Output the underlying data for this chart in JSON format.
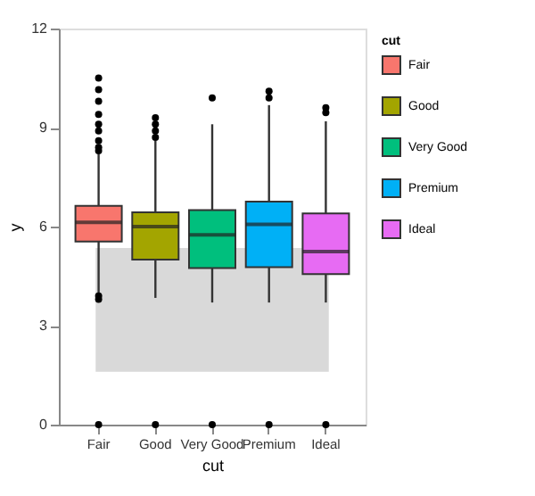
{
  "chart_data": {
    "type": "box",
    "xlabel": "cut",
    "ylabel": "y",
    "legend_title": "cut",
    "legend": "right",
    "grid": false,
    "categories": [
      "Fair",
      "Good",
      "Very Good",
      "Premium",
      "Ideal"
    ],
    "ylim": [
      0,
      12
    ],
    "yticks": [
      0,
      3,
      6,
      9,
      12
    ],
    "series": [
      {
        "name": "Fair",
        "color": "#f8766d",
        "boxes": [
          {
            "low": 4.0,
            "q1": 5.55,
            "median": 6.13,
            "q3": 6.63,
            "high": 8.2,
            "outliers": [
              10.5,
              10.15,
              9.8,
              9.4,
              9.1,
              8.9,
              8.6,
              8.4,
              8.3,
              3.9,
              3.8,
              0
            ]
          },
          null,
          null,
          null,
          null
        ]
      },
      {
        "name": "Good",
        "color": "#a3a500",
        "boxes": [
          null,
          {
            "low": 3.84,
            "q1": 5.0,
            "median": 6.0,
            "q3": 6.43,
            "high": 8.6,
            "outliers": [
              9.3,
              9.1,
              8.9,
              8.7,
              0
            ]
          },
          null,
          null,
          null
        ]
      },
      {
        "name": "Very Good",
        "color": "#00bf7d",
        "boxes": [
          null,
          null,
          {
            "low": 3.7,
            "q1": 4.74,
            "median": 5.75,
            "q3": 6.5,
            "high": 9.1,
            "outliers": [
              9.9,
              0
            ]
          },
          null,
          null
        ]
      },
      {
        "name": "Premium",
        "color": "#00b0f6",
        "boxes": [
          null,
          null,
          null,
          {
            "low": 3.7,
            "q1": 4.77,
            "median": 6.07,
            "q3": 6.76,
            "high": 9.68,
            "outliers": [
              10.1,
              9.9,
              0
            ]
          },
          null
        ]
      },
      {
        "name": "Ideal",
        "color": "#e76bf3",
        "boxes": [
          null,
          null,
          null,
          null,
          {
            "low": 3.7,
            "q1": 4.56,
            "median": 5.24,
            "q3": 6.4,
            "high": 9.19,
            "outliers": [
              9.6,
              9.45,
              0
            ]
          }
        ]
      }
    ],
    "bands": [
      {
        "axis": "y",
        "from": 1.6,
        "to": 5.35,
        "color": "#d9d9d9"
      }
    ]
  }
}
